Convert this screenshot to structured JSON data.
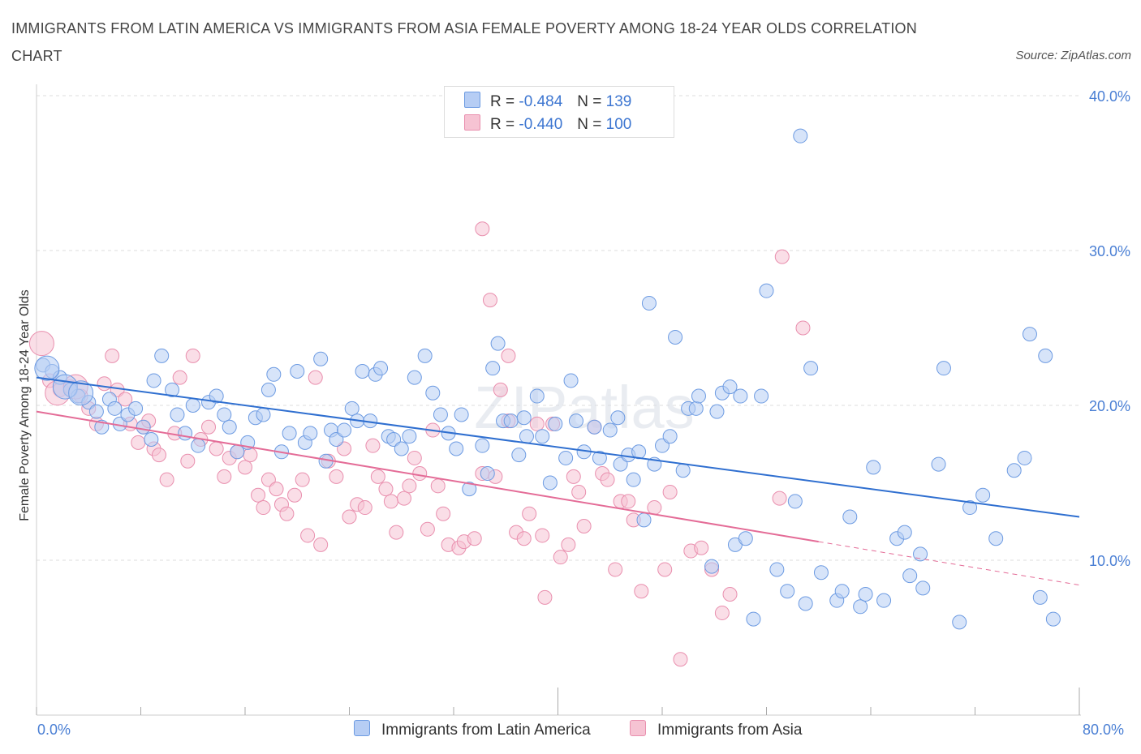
{
  "title": "IMMIGRANTS FROM LATIN AMERICA VS IMMIGRANTS FROM ASIA FEMALE POVERTY AMONG 18-24 YEAR OLDS CORRELATION CHART",
  "source": "Source: ZipAtlas.com",
  "watermark": "ZIPatlas",
  "legend": {
    "r_label": "R =",
    "n_label": "N =",
    "rows": [
      {
        "r": "-0.484",
        "n": "139"
      },
      {
        "r": "-0.440",
        "n": "100"
      }
    ]
  },
  "colors": {
    "blue_fill": "#b6cdf4",
    "blue_stroke": "#6d9be2",
    "blue_line": "#2f6fd0",
    "pink_fill": "#f6c3d3",
    "pink_stroke": "#e98fae",
    "pink_line": "#e46c97",
    "grid": "#dddddd",
    "tick_text": "#4a7fd4"
  },
  "chart_data": {
    "type": "scatter",
    "title": "IMMIGRANTS FROM LATIN AMERICA VS IMMIGRANTS FROM ASIA FEMALE POVERTY AMONG 18-24 YEAR OLDS CORRELATION CHART",
    "xlabel": "",
    "ylabel": "Female Poverty Among 18-24 Year Olds",
    "xlim": [
      0,
      80
    ],
    "ylim": [
      0,
      40
    ],
    "x_tick_labels": [
      "0.0%",
      "80.0%"
    ],
    "y_ticks": [
      10,
      20,
      30,
      40
    ],
    "y_tick_labels": [
      "10.0%",
      "20.0%",
      "30.0%",
      "40.0%"
    ],
    "series": [
      {
        "name": "Immigrants from Latin America",
        "r": -0.484,
        "n": 139,
        "trend": {
          "x0": 0,
          "y0": 21.8,
          "x1": 80,
          "y1": 12.8
        },
        "points": [
          [
            0.5,
            22.6
          ],
          [
            1.2,
            22.2
          ],
          [
            1.8,
            21.8
          ],
          [
            2.6,
            21.0
          ],
          [
            3.2,
            20.6
          ],
          [
            4.0,
            20.2
          ],
          [
            4.6,
            19.6
          ],
          [
            5.0,
            18.6
          ],
          [
            5.6,
            20.4
          ],
          [
            6.0,
            19.8
          ],
          [
            6.4,
            18.8
          ],
          [
            7.0,
            19.4
          ],
          [
            7.6,
            19.8
          ],
          [
            8.2,
            18.6
          ],
          [
            8.8,
            17.8
          ],
          [
            9.0,
            21.6
          ],
          [
            9.6,
            23.2
          ],
          [
            10.4,
            21.0
          ],
          [
            10.8,
            19.4
          ],
          [
            11.4,
            18.2
          ],
          [
            12.0,
            20.0
          ],
          [
            12.4,
            17.4
          ],
          [
            13.2,
            20.2
          ],
          [
            13.8,
            20.6
          ],
          [
            14.4,
            19.4
          ],
          [
            14.8,
            18.6
          ],
          [
            15.4,
            17.0
          ],
          [
            16.2,
            17.6
          ],
          [
            16.8,
            19.2
          ],
          [
            17.4,
            19.4
          ],
          [
            17.8,
            21.0
          ],
          [
            18.2,
            22.0
          ],
          [
            18.8,
            17.0
          ],
          [
            19.4,
            18.2
          ],
          [
            20.0,
            22.2
          ],
          [
            20.6,
            17.6
          ],
          [
            21.0,
            18.2
          ],
          [
            21.8,
            23.0
          ],
          [
            22.2,
            16.4
          ],
          [
            22.6,
            18.4
          ],
          [
            23.0,
            17.8
          ],
          [
            23.6,
            18.4
          ],
          [
            24.2,
            19.8
          ],
          [
            24.6,
            19.0
          ],
          [
            25.0,
            22.2
          ],
          [
            25.6,
            19.0
          ],
          [
            26.0,
            22.0
          ],
          [
            26.4,
            22.4
          ],
          [
            27.0,
            18.0
          ],
          [
            27.4,
            17.8
          ],
          [
            28.0,
            17.2
          ],
          [
            28.6,
            18.0
          ],
          [
            29.0,
            21.8
          ],
          [
            29.8,
            23.2
          ],
          [
            30.4,
            20.8
          ],
          [
            31.0,
            19.4
          ],
          [
            31.6,
            18.2
          ],
          [
            32.2,
            17.2
          ],
          [
            32.6,
            19.4
          ],
          [
            33.2,
            14.6
          ],
          [
            34.2,
            17.4
          ],
          [
            34.6,
            15.6
          ],
          [
            35.0,
            22.4
          ],
          [
            35.4,
            24.0
          ],
          [
            35.8,
            19.0
          ],
          [
            36.4,
            19.0
          ],
          [
            37.0,
            16.8
          ],
          [
            37.4,
            19.2
          ],
          [
            37.6,
            18.0
          ],
          [
            38.4,
            20.6
          ],
          [
            38.8,
            18.0
          ],
          [
            39.4,
            15.0
          ],
          [
            39.8,
            18.8
          ],
          [
            40.6,
            16.6
          ],
          [
            41.0,
            21.6
          ],
          [
            41.4,
            19.0
          ],
          [
            42.0,
            17.0
          ],
          [
            42.8,
            18.6
          ],
          [
            43.2,
            16.6
          ],
          [
            44.0,
            18.4
          ],
          [
            44.6,
            19.2
          ],
          [
            44.8,
            16.2
          ],
          [
            45.4,
            16.8
          ],
          [
            45.8,
            15.2
          ],
          [
            46.2,
            17.0
          ],
          [
            46.6,
            12.6
          ],
          [
            47.0,
            26.6
          ],
          [
            47.4,
            16.2
          ],
          [
            48.0,
            17.4
          ],
          [
            48.6,
            18.0
          ],
          [
            49.0,
            24.4
          ],
          [
            49.6,
            15.8
          ],
          [
            50.0,
            19.8
          ],
          [
            50.6,
            19.8
          ],
          [
            50.8,
            20.6
          ],
          [
            51.8,
            9.6
          ],
          [
            52.2,
            19.6
          ],
          [
            52.6,
            20.8
          ],
          [
            53.2,
            21.2
          ],
          [
            53.6,
            11.0
          ],
          [
            54.0,
            20.6
          ],
          [
            54.4,
            11.4
          ],
          [
            55.0,
            6.2
          ],
          [
            55.6,
            20.6
          ],
          [
            56.0,
            27.4
          ],
          [
            56.8,
            9.4
          ],
          [
            57.6,
            8.0
          ],
          [
            58.2,
            13.8
          ],
          [
            59.0,
            7.2
          ],
          [
            59.4,
            22.4
          ],
          [
            60.2,
            9.2
          ],
          [
            61.4,
            7.4
          ],
          [
            61.8,
            8.0
          ],
          [
            62.4,
            12.8
          ],
          [
            63.2,
            7.0
          ],
          [
            63.6,
            7.8
          ],
          [
            64.2,
            16.0
          ],
          [
            65.0,
            7.4
          ],
          [
            66.0,
            11.4
          ],
          [
            66.6,
            11.8
          ],
          [
            67.0,
            9.0
          ],
          [
            67.8,
            10.4
          ],
          [
            68.0,
            8.2
          ],
          [
            69.2,
            16.2
          ],
          [
            69.6,
            22.4
          ],
          [
            70.8,
            6.0
          ],
          [
            71.6,
            13.4
          ],
          [
            72.6,
            14.2
          ],
          [
            73.6,
            11.4
          ],
          [
            75.0,
            15.8
          ],
          [
            75.8,
            16.6
          ],
          [
            76.2,
            24.6
          ],
          [
            77.0,
            7.6
          ],
          [
            77.4,
            23.2
          ],
          [
            78.0,
            6.2
          ],
          [
            58.6,
            37.4
          ]
        ],
        "big_points": [
          [
            0.8,
            22.4
          ],
          [
            2.2,
            21.2
          ],
          [
            3.4,
            20.8
          ]
        ]
      },
      {
        "name": "Immigrants from Asia",
        "r": -0.44,
        "n": 100,
        "trend": {
          "x0": 0,
          "y0": 19.6,
          "x1": 60,
          "y1": 11.2
        },
        "trend_dashed": {
          "x0": 60,
          "y0": 11.2,
          "x1": 80,
          "y1": 8.4
        },
        "points": [
          [
            1.0,
            21.6
          ],
          [
            1.8,
            21.0
          ],
          [
            2.6,
            21.2
          ],
          [
            3.4,
            20.6
          ],
          [
            4.0,
            19.8
          ],
          [
            4.6,
            18.8
          ],
          [
            5.2,
            21.4
          ],
          [
            5.8,
            23.2
          ],
          [
            6.2,
            21.0
          ],
          [
            6.8,
            20.4
          ],
          [
            7.2,
            18.8
          ],
          [
            7.8,
            17.6
          ],
          [
            8.2,
            18.6
          ],
          [
            8.6,
            19.0
          ],
          [
            9.0,
            17.2
          ],
          [
            9.4,
            16.8
          ],
          [
            10.0,
            15.2
          ],
          [
            10.6,
            18.2
          ],
          [
            11.0,
            21.8
          ],
          [
            11.6,
            16.4
          ],
          [
            12.0,
            23.2
          ],
          [
            12.6,
            17.8
          ],
          [
            13.2,
            18.6
          ],
          [
            13.8,
            17.2
          ],
          [
            14.4,
            15.4
          ],
          [
            14.8,
            16.6
          ],
          [
            15.4,
            17.0
          ],
          [
            16.0,
            16.0
          ],
          [
            16.4,
            16.8
          ],
          [
            17.0,
            14.2
          ],
          [
            17.4,
            13.4
          ],
          [
            17.8,
            15.2
          ],
          [
            18.4,
            14.6
          ],
          [
            18.8,
            13.6
          ],
          [
            19.2,
            13.0
          ],
          [
            19.8,
            14.2
          ],
          [
            20.4,
            15.2
          ],
          [
            20.8,
            11.6
          ],
          [
            21.4,
            21.8
          ],
          [
            21.8,
            11.0
          ],
          [
            22.4,
            16.4
          ],
          [
            23.0,
            15.4
          ],
          [
            23.6,
            17.2
          ],
          [
            24.0,
            12.8
          ],
          [
            24.6,
            13.6
          ],
          [
            25.2,
            13.4
          ],
          [
            25.8,
            17.4
          ],
          [
            26.2,
            15.4
          ],
          [
            26.8,
            14.6
          ],
          [
            27.2,
            13.8
          ],
          [
            27.6,
            11.8
          ],
          [
            28.2,
            14.0
          ],
          [
            28.6,
            14.8
          ],
          [
            29.0,
            16.6
          ],
          [
            29.4,
            15.6
          ],
          [
            30.0,
            12.0
          ],
          [
            30.4,
            18.4
          ],
          [
            30.8,
            14.8
          ],
          [
            31.2,
            13.0
          ],
          [
            31.6,
            11.0
          ],
          [
            32.4,
            10.8
          ],
          [
            32.8,
            11.2
          ],
          [
            33.6,
            11.4
          ],
          [
            34.2,
            15.6
          ],
          [
            34.8,
            26.8
          ],
          [
            35.2,
            15.4
          ],
          [
            35.6,
            21.0
          ],
          [
            36.2,
            19.0
          ],
          [
            36.8,
            11.8
          ],
          [
            37.4,
            11.4
          ],
          [
            37.8,
            13.0
          ],
          [
            38.4,
            18.8
          ],
          [
            38.8,
            11.6
          ],
          [
            39.0,
            7.6
          ],
          [
            39.6,
            18.8
          ],
          [
            40.2,
            10.2
          ],
          [
            40.8,
            11.0
          ],
          [
            41.2,
            15.4
          ],
          [
            41.6,
            14.4
          ],
          [
            42.0,
            12.2
          ],
          [
            42.8,
            18.6
          ],
          [
            43.4,
            15.6
          ],
          [
            43.8,
            15.2
          ],
          [
            44.4,
            9.4
          ],
          [
            44.8,
            13.8
          ],
          [
            45.4,
            13.8
          ],
          [
            45.8,
            12.6
          ],
          [
            46.4,
            8.0
          ],
          [
            47.4,
            13.4
          ],
          [
            48.2,
            9.4
          ],
          [
            48.6,
            14.4
          ],
          [
            49.4,
            3.6
          ],
          [
            50.2,
            10.6
          ],
          [
            51.0,
            10.8
          ],
          [
            51.8,
            9.4
          ],
          [
            52.6,
            6.6
          ],
          [
            53.2,
            7.8
          ],
          [
            57.0,
            14.0
          ],
          [
            57.2,
            29.6
          ],
          [
            58.8,
            25.0
          ],
          [
            34.2,
            31.4
          ],
          [
            36.2,
            23.2
          ]
        ],
        "big_points": [
          [
            0.4,
            24.0
          ],
          [
            1.6,
            20.8
          ],
          [
            3.0,
            21.2
          ]
        ]
      }
    ]
  },
  "bottom_legend": [
    "Immigrants from Latin America",
    "Immigrants from Asia"
  ]
}
